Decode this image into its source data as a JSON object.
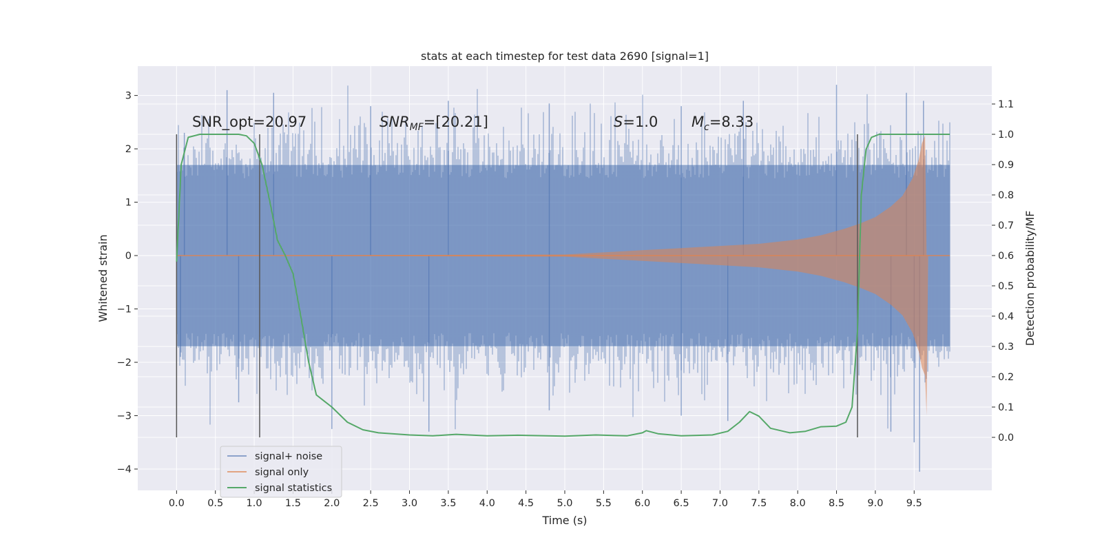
{
  "chart_data": {
    "type": "line",
    "title": "stats at each timestep for test data 2690 [signal=1]",
    "xlabel": "Time (s)",
    "ylabel": "Whitened strain",
    "y2label": "Detection probability/MF",
    "xlim": [
      -0.5,
      10.5
    ],
    "ylim": [
      -4.4,
      3.55
    ],
    "y2lim": [
      -0.175,
      1.225
    ],
    "x_ticks": [
      "0.0",
      "0.5",
      "1.0",
      "1.5",
      "2.0",
      "2.5",
      "3.0",
      "3.5",
      "4.0",
      "4.5",
      "5.0",
      "5.5",
      "6.0",
      "6.5",
      "7.0",
      "7.5",
      "8.0",
      "8.5",
      "9.0",
      "9.5"
    ],
    "y_ticks": [
      "−4",
      "−3",
      "−2",
      "−1",
      "0",
      "1",
      "2",
      "3"
    ],
    "y2_ticks": [
      "0.0",
      "0.1",
      "0.2",
      "0.3",
      "0.4",
      "0.5",
      "0.6",
      "0.7",
      "0.8",
      "0.9",
      "1.0",
      "1.1"
    ],
    "grid": true,
    "legend_position": "lower-left",
    "colors": {
      "background": "#eaeaf2",
      "grid": "#ffffff",
      "signal_noise": "#4c72b0",
      "signal_only": "#dd8452",
      "signal_statistics": "#55a868",
      "vlines": "#555555"
    },
    "annotations": {
      "snr_opt": "SNR_opt=20.97",
      "snr_mf_base": "SNR",
      "snr_mf_sub": "MF",
      "snr_mf_rest": "=[20.21]",
      "s_base": "S",
      "s_rest": "=1.0",
      "mc_base": "M",
      "mc_sub": "c",
      "mc_rest": "=8.33"
    },
    "vertical_lines_x": [
      0.0,
      1.07,
      8.77
    ],
    "series": [
      {
        "name": "signal+ noise",
        "kind": "noise_band",
        "x_range": [
          0.0,
          9.96
        ],
        "typical_range": [
          -1.7,
          1.7
        ],
        "peak_max": [
          [
            0.1,
            2.3
          ],
          [
            0.65,
            3.1
          ],
          [
            1.25,
            3.05
          ],
          [
            2.5,
            2.8
          ],
          [
            3.5,
            2.9
          ],
          [
            4.8,
            2.85
          ],
          [
            6.5,
            2.8
          ],
          [
            7.3,
            2.9
          ],
          [
            8.5,
            3.2
          ],
          [
            9.4,
            3.05
          ],
          [
            9.62,
            2.9
          ]
        ],
        "peak_min": [
          [
            0.05,
            -1.9
          ],
          [
            0.8,
            -2.75
          ],
          [
            2.0,
            -3.25
          ],
          [
            3.25,
            -3.3
          ],
          [
            4.8,
            -2.9
          ],
          [
            6.5,
            -3.0
          ],
          [
            7.1,
            -3.1
          ],
          [
            9.2,
            -3.3
          ],
          [
            9.5,
            -3.5
          ],
          [
            9.57,
            -4.05
          ]
        ]
      },
      {
        "name": "signal only",
        "kind": "chirp_envelope",
        "points": [
          [
            0.0,
            0.0
          ],
          [
            5.0,
            0.02
          ],
          [
            5.5,
            0.06
          ],
          [
            6.0,
            0.1
          ],
          [
            6.5,
            0.14
          ],
          [
            7.0,
            0.18
          ],
          [
            7.5,
            0.22
          ],
          [
            8.0,
            0.3
          ],
          [
            8.3,
            0.38
          ],
          [
            8.6,
            0.5
          ],
          [
            8.8,
            0.6
          ],
          [
            9.0,
            0.72
          ],
          [
            9.2,
            0.92
          ],
          [
            9.35,
            1.12
          ],
          [
            9.48,
            1.45
          ],
          [
            9.56,
            1.8
          ],
          [
            9.6,
            2.1
          ],
          [
            9.64,
            2.25
          ],
          [
            9.66,
            -3.0
          ],
          [
            9.68,
            0.0
          ],
          [
            9.96,
            0.0
          ]
        ]
      },
      {
        "name": "signal statistics",
        "axis": "right",
        "points": [
          [
            0.0,
            0.58
          ],
          [
            0.06,
            0.9
          ],
          [
            0.15,
            0.99
          ],
          [
            0.3,
            1.0
          ],
          [
            0.6,
            1.0
          ],
          [
            0.8,
            1.0
          ],
          [
            0.9,
            0.995
          ],
          [
            1.0,
            0.97
          ],
          [
            1.1,
            0.9
          ],
          [
            1.2,
            0.78
          ],
          [
            1.3,
            0.65
          ],
          [
            1.4,
            0.6
          ],
          [
            1.5,
            0.54
          ],
          [
            1.6,
            0.4
          ],
          [
            1.7,
            0.25
          ],
          [
            1.8,
            0.14
          ],
          [
            1.9,
            0.12
          ],
          [
            2.0,
            0.1
          ],
          [
            2.2,
            0.05
          ],
          [
            2.4,
            0.025
          ],
          [
            2.6,
            0.015
          ],
          [
            3.0,
            0.008
          ],
          [
            3.3,
            0.005
          ],
          [
            3.6,
            0.01
          ],
          [
            4.0,
            0.005
          ],
          [
            4.4,
            0.007
          ],
          [
            5.0,
            0.004
          ],
          [
            5.4,
            0.008
          ],
          [
            5.8,
            0.005
          ],
          [
            6.0,
            0.015
          ],
          [
            6.05,
            0.022
          ],
          [
            6.2,
            0.012
          ],
          [
            6.5,
            0.005
          ],
          [
            6.9,
            0.008
          ],
          [
            7.1,
            0.02
          ],
          [
            7.25,
            0.05
          ],
          [
            7.38,
            0.085
          ],
          [
            7.5,
            0.07
          ],
          [
            7.65,
            0.03
          ],
          [
            7.9,
            0.015
          ],
          [
            8.1,
            0.02
          ],
          [
            8.3,
            0.035
          ],
          [
            8.5,
            0.037
          ],
          [
            8.62,
            0.05
          ],
          [
            8.7,
            0.1
          ],
          [
            8.77,
            0.35
          ],
          [
            8.82,
            0.8
          ],
          [
            8.88,
            0.95
          ],
          [
            8.95,
            0.99
          ],
          [
            9.05,
            1.0
          ],
          [
            9.2,
            1.0
          ],
          [
            9.96,
            1.0
          ]
        ]
      }
    ]
  }
}
